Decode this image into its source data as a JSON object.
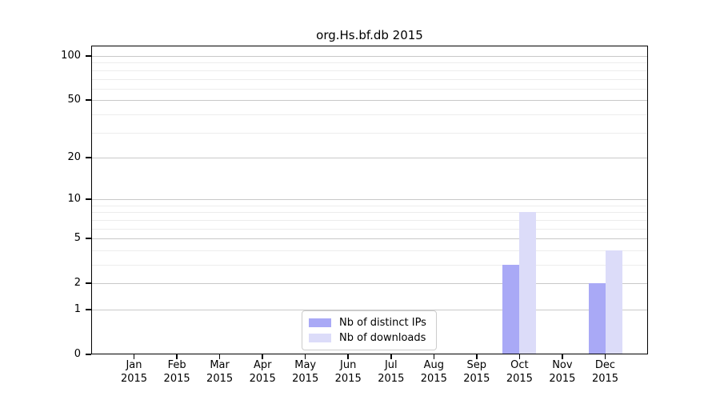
{
  "title": "org.Hs.bf.db 2015",
  "chart_data": {
    "type": "bar",
    "title": "org.Hs.bf.db 2015",
    "categories": [
      "Jan",
      "Feb",
      "Mar",
      "Apr",
      "May",
      "Jun",
      "Jul",
      "Aug",
      "Sep",
      "Oct",
      "Nov",
      "Dec"
    ],
    "year_label": "2015",
    "series": [
      {
        "name": "Nb of distinct IPs",
        "color": "#a9a9f6",
        "values": [
          0,
          0,
          0,
          0,
          0,
          0,
          0,
          0,
          0,
          3,
          0,
          2
        ]
      },
      {
        "name": "Nb of downloads",
        "color": "#dcdcf9",
        "values": [
          0,
          0,
          0,
          0,
          0,
          0,
          0,
          0,
          0,
          8,
          0,
          4
        ]
      }
    ],
    "xlabel": "",
    "ylabel": "",
    "yscale": "log1p",
    "ylim": [
      0,
      117
    ],
    "yticks": [
      0,
      1,
      2,
      5,
      10,
      20,
      50,
      100
    ],
    "yticks_minor": [
      3,
      4,
      6,
      7,
      8,
      9,
      30,
      40,
      60,
      70,
      80,
      90
    ],
    "grid": true,
    "legend_position": "lower center"
  }
}
